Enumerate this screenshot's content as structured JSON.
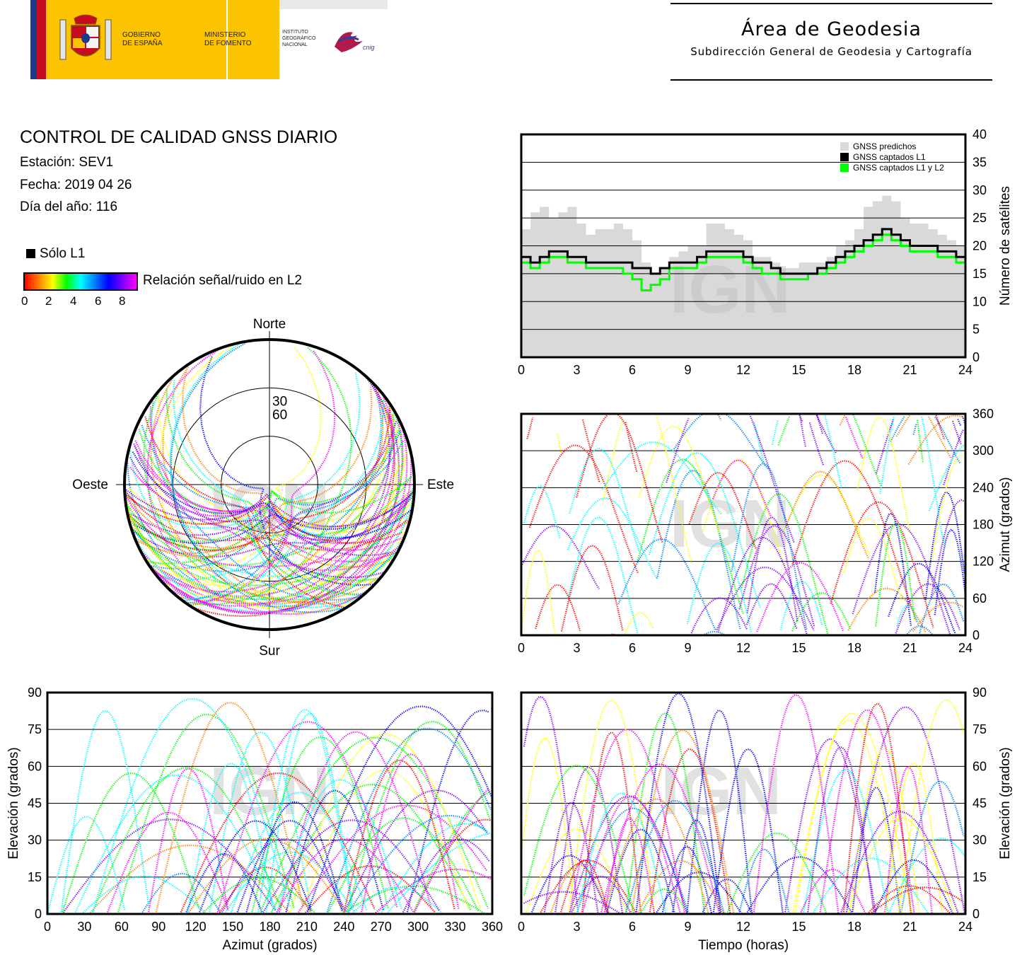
{
  "header": {
    "gobierno": [
      "GOBIERNO",
      "DE ESPAÑA"
    ],
    "ministerio": [
      "MINISTERIO",
      "DE FOMENTO"
    ],
    "instituto": [
      "INSTITUTO",
      "GEOGRÁFICO",
      "NACIONAL"
    ],
    "cnig": "cnig",
    "area_title": "Área de Geodesia",
    "area_subtitle": "Subdirección General de Geodesia y Cartografía"
  },
  "info": {
    "title": "CONTROL DE CALIDAD GNSS DIARIO",
    "station": "Estación: SEV1",
    "date": "Fecha: 2019 04 26",
    "doy": "Día del año: 116",
    "legend_l1": "Sólo L1",
    "snr_label": "Relación señal/ruido en L2",
    "snr_ticks": [
      "0",
      "2",
      "4",
      "6",
      "8"
    ]
  },
  "watermark": "IGN",
  "colors": {
    "predicted": "#d9d9d9",
    "l1": "#000000",
    "l1l2": "#00ff00",
    "snr_scale": [
      "#ff0000",
      "#ff8000",
      "#ffff00",
      "#00ff00",
      "#00ffff",
      "#0080ff",
      "#0000ff",
      "#8000ff",
      "#ff00ff"
    ]
  },
  "chart_data": [
    {
      "id": "skyplot",
      "type": "scatter",
      "labels": {
        "north": "Norte",
        "south": "Sur",
        "east": "Este",
        "west": "Oeste"
      },
      "ring_labels": [
        "30",
        "60"
      ],
      "note": "Satellite tracks in polar sky view; colour = SNR in L2"
    },
    {
      "id": "satellites",
      "type": "area",
      "ylabel": "Número de satélites",
      "x_ticks": [
        "0",
        "3",
        "6",
        "9",
        "12",
        "15",
        "18",
        "21",
        "24"
      ],
      "y_ticks": [
        "0",
        "5",
        "10",
        "15",
        "20",
        "25",
        "30",
        "35",
        "40"
      ],
      "xlim": [
        0,
        24
      ],
      "ylim": [
        0,
        40
      ],
      "legend": [
        "GNSS predichos",
        "GNSS captados L1",
        "GNSS captados L1 y L2"
      ],
      "legend_position": "top-right",
      "x": [
        0,
        0.5,
        1,
        1.5,
        2,
        2.5,
        3,
        3.5,
        4,
        4.5,
        5,
        5.5,
        6,
        6.5,
        7,
        7.5,
        8,
        8.5,
        9,
        9.5,
        10,
        10.5,
        11,
        11.5,
        12,
        12.5,
        13,
        13.5,
        14,
        14.5,
        15,
        15.5,
        16,
        16.5,
        17,
        17.5,
        18,
        18.5,
        19,
        19.5,
        20,
        20.5,
        21,
        21.5,
        22,
        22.5,
        23,
        23.5,
        24
      ],
      "series": [
        {
          "name": "GNSS predichos",
          "values": [
            23,
            26,
            27,
            25,
            26,
            27,
            24,
            22,
            23,
            23,
            24,
            23,
            21,
            17,
            15,
            16,
            18,
            19,
            20,
            20,
            24,
            24,
            23,
            22,
            21,
            18,
            18,
            17,
            16,
            16,
            17,
            17,
            17,
            18,
            20,
            21,
            23,
            27,
            28,
            29,
            28,
            25,
            24,
            24,
            23,
            22,
            21,
            20,
            20
          ]
        },
        {
          "name": "GNSS captados L1",
          "values": [
            18,
            17,
            18,
            19,
            19,
            18,
            18,
            17,
            17,
            17,
            17,
            17,
            16,
            16,
            15,
            16,
            17,
            17,
            17,
            18,
            19,
            19,
            19,
            19,
            18,
            17,
            17,
            16,
            15,
            15,
            15,
            15,
            16,
            17,
            18,
            19,
            20,
            21,
            22,
            23,
            22,
            21,
            20,
            20,
            20,
            19,
            19,
            18,
            18
          ]
        },
        {
          "name": "GNSS captados L1 y L2",
          "values": [
            17,
            16,
            17,
            18,
            18,
            17,
            17,
            16,
            16,
            16,
            16,
            15,
            14,
            12,
            13,
            14,
            16,
            16,
            16,
            17,
            18,
            18,
            18,
            18,
            17,
            16,
            15,
            15,
            14,
            14,
            14,
            15,
            15,
            16,
            17,
            18,
            19,
            20,
            21,
            22,
            21,
            20,
            19,
            19,
            19,
            18,
            18,
            17,
            17
          ]
        }
      ]
    },
    {
      "id": "azimuth",
      "type": "scatter",
      "ylabel": "Azimut (grados)",
      "x_ticks": [
        "0",
        "3",
        "6",
        "9",
        "12",
        "15",
        "18",
        "21",
        "24"
      ],
      "y_ticks": [
        "0",
        "60",
        "120",
        "180",
        "240",
        "300",
        "360"
      ],
      "xlim": [
        0,
        24
      ],
      "ylim": [
        0,
        360
      ]
    },
    {
      "id": "elev_az",
      "type": "scatter",
      "xlabel": "Azimut (grados)",
      "ylabel": "Elevación (grados)",
      "x_ticks": [
        "0",
        "30",
        "60",
        "90",
        "120",
        "150",
        "180",
        "210",
        "240",
        "270",
        "300",
        "330",
        "360"
      ],
      "y_ticks": [
        "0",
        "15",
        "30",
        "45",
        "60",
        "75",
        "90"
      ],
      "xlim": [
        0,
        360
      ],
      "ylim": [
        0,
        90
      ]
    },
    {
      "id": "elev_time",
      "type": "scatter",
      "xlabel": "Tiempo (horas)",
      "ylabel": "Elevación (grados)",
      "x_ticks": [
        "0",
        "3",
        "6",
        "9",
        "12",
        "15",
        "18",
        "21",
        "24"
      ],
      "y_ticks": [
        "0",
        "15",
        "30",
        "45",
        "60",
        "75",
        "90"
      ],
      "xlim": [
        0,
        24
      ],
      "ylim": [
        0,
        90
      ]
    }
  ]
}
